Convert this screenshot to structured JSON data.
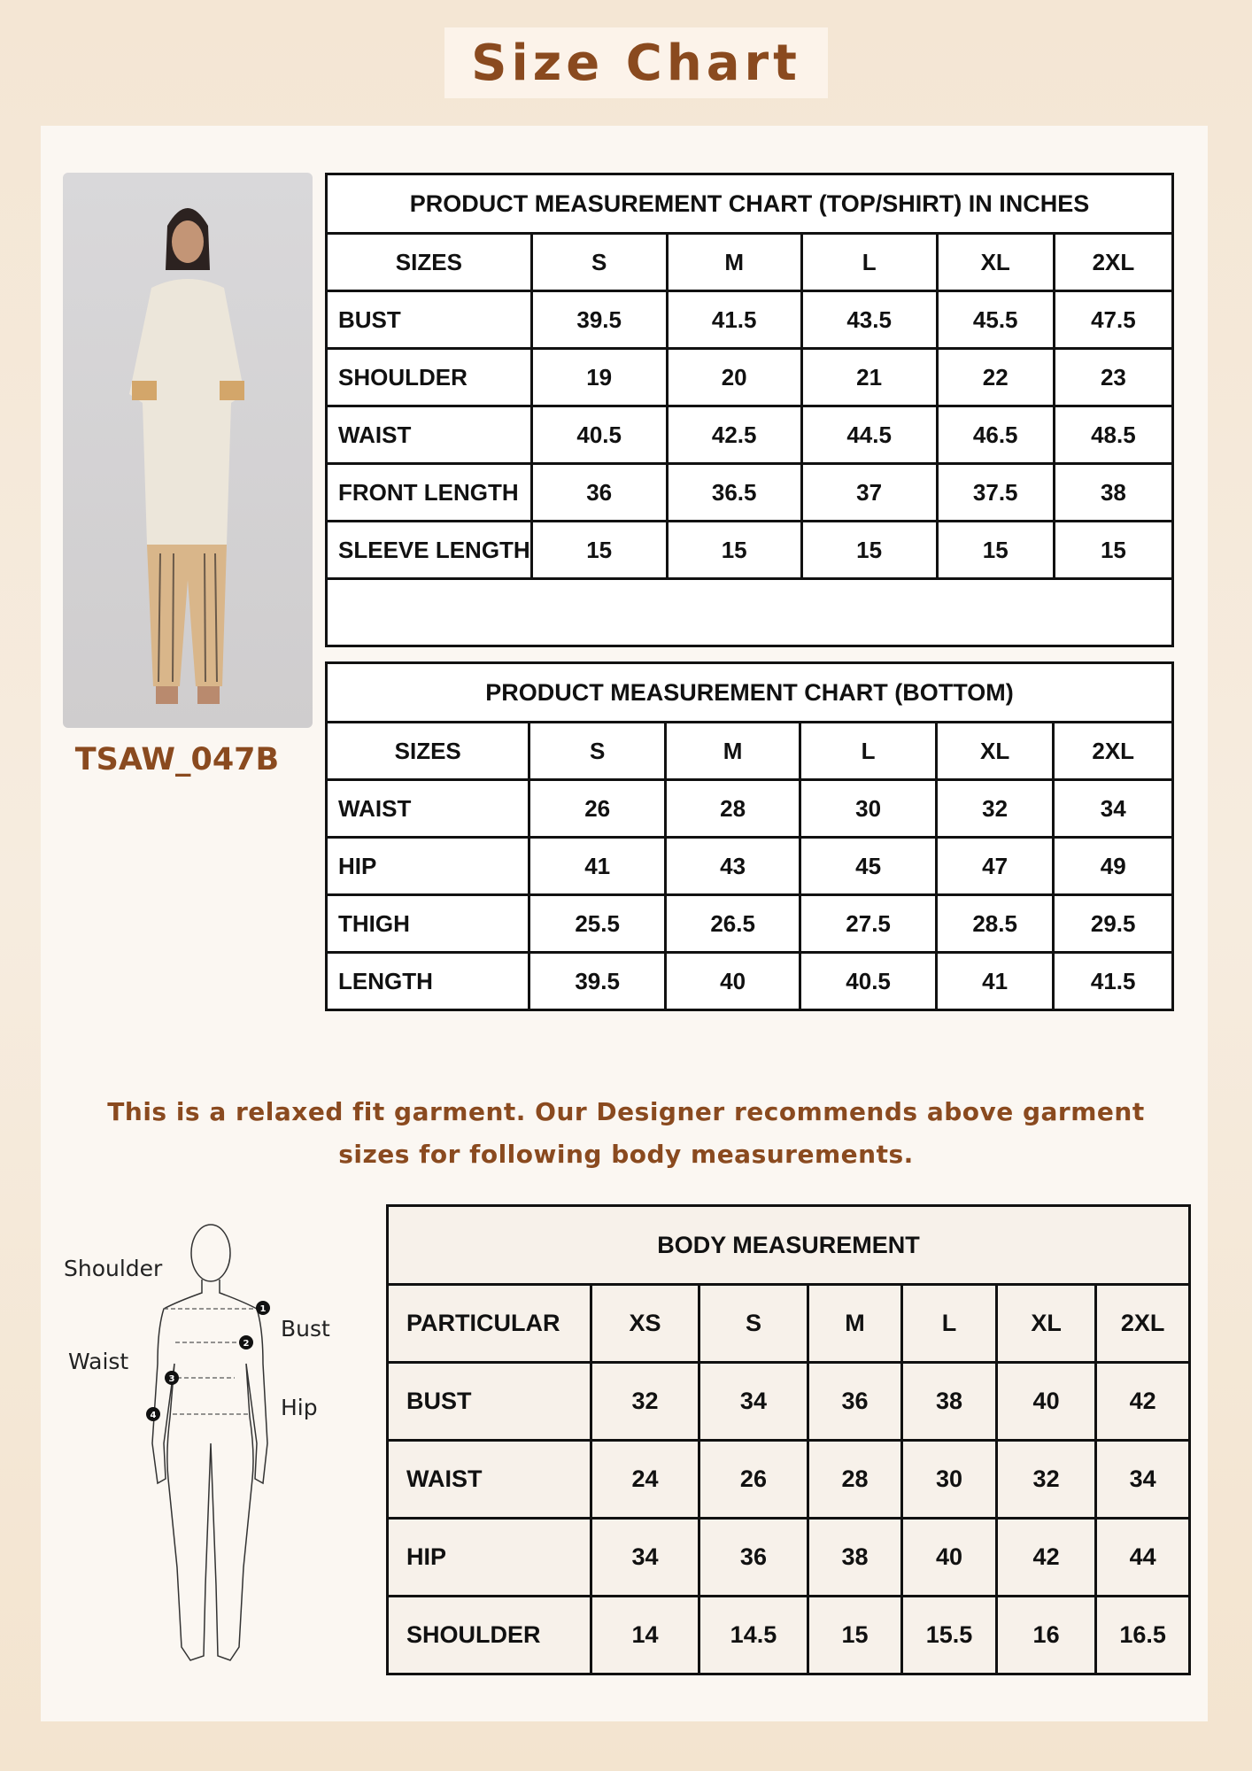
{
  "title": "Size Chart",
  "product_code": "TSAW_047B",
  "brand_color": "#8a4a1f",
  "top_chart": {
    "title": "PRODUCT MEASUREMENT CHART (TOP/SHIRT) IN INCHES",
    "header": [
      "SIZES",
      "S",
      "M",
      "L",
      "XL",
      "2XL"
    ],
    "rows": [
      {
        "label": "BUST",
        "values": [
          "39.5",
          "41.5",
          "43.5",
          "45.5",
          "47.5"
        ]
      },
      {
        "label": "SHOULDER",
        "values": [
          "19",
          "20",
          "21",
          "22",
          "23"
        ]
      },
      {
        "label": "WAIST",
        "values": [
          "40.5",
          "42.5",
          "44.5",
          "46.5",
          "48.5"
        ]
      },
      {
        "label": "FRONT LENGTH",
        "values": [
          "36",
          "36.5",
          "37",
          "37.5",
          "38"
        ]
      },
      {
        "label": "SLEEVE LENGTH",
        "values": [
          "15",
          "15",
          "15",
          "15",
          "15"
        ]
      }
    ]
  },
  "bottom_chart": {
    "title": "PRODUCT MEASUREMENT CHART (BOTTOM)",
    "header": [
      "SIZES",
      "S",
      "M",
      "L",
      "XL",
      "2XL"
    ],
    "rows": [
      {
        "label": "WAIST",
        "values": [
          "26",
          "28",
          "30",
          "32",
          "34"
        ]
      },
      {
        "label": "HIP",
        "values": [
          "41",
          "43",
          "45",
          "47",
          "49"
        ]
      },
      {
        "label": "THIGH",
        "values": [
          "25.5",
          "26.5",
          "27.5",
          "28.5",
          "29.5"
        ]
      },
      {
        "label": "LENGTH",
        "values": [
          "39.5",
          "40",
          "40.5",
          "41",
          "41.5"
        ]
      }
    ]
  },
  "note": {
    "line1": "This is a relaxed fit garment. Our Designer recommends above garment",
    "line2": "sizes for following body measurements."
  },
  "figure_labels": {
    "shoulder": "Shoulder",
    "bust": "Bust",
    "waist": "Waist",
    "hip": "Hip",
    "markers": [
      "1",
      "2",
      "3",
      "4"
    ]
  },
  "body_chart": {
    "title": "BODY MEASUREMENT",
    "header": [
      "PARTICULAR",
      "XS",
      "S",
      "M",
      "L",
      "XL",
      "2XL"
    ],
    "rows": [
      {
        "label": "BUST",
        "values": [
          "32",
          "34",
          "36",
          "38",
          "40",
          "42"
        ]
      },
      {
        "label": "WAIST",
        "values": [
          "24",
          "26",
          "28",
          "30",
          "32",
          "34"
        ]
      },
      {
        "label": "HIP",
        "values": [
          "34",
          "36",
          "38",
          "40",
          "42",
          "44"
        ]
      },
      {
        "label": "SHOULDER",
        "values": [
          "14",
          "14.5",
          "15",
          "15.5",
          "16",
          "16.5"
        ]
      }
    ]
  }
}
